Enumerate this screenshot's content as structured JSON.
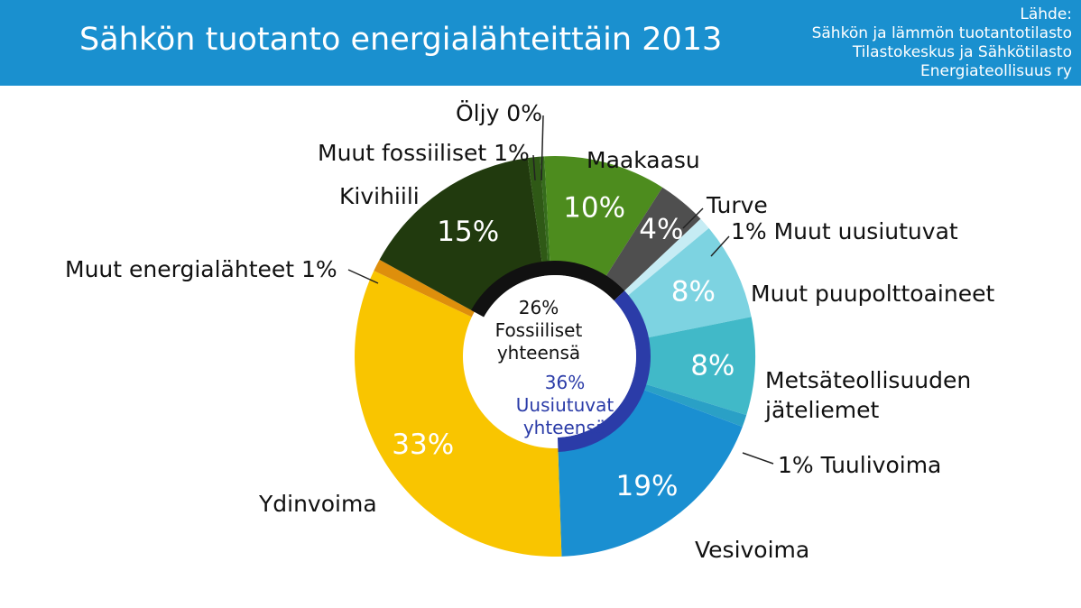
{
  "header": {
    "title": "Sähkön tuotanto energialähteittäin 2013",
    "source_lines": [
      "Lähde:",
      "Sähkön ja lämmön tuotantotilasto",
      "Tilastokeskus ja Sähkötilasto",
      "Energiateollisuus ry"
    ]
  },
  "colors": {
    "header_bg": "#1a90cf",
    "fossil_ring": "#111111",
    "renewable_ring": "#2b3ca8"
  },
  "chart_data": {
    "type": "pie",
    "title": "Sähkön tuotanto energialähteittäin 2013",
    "unit": "%",
    "slices": [
      {
        "name": "Öljy",
        "value": 0,
        "value_label": "",
        "label": "Öljy 0%",
        "color": "#356b1c"
      },
      {
        "name": "Maakaasu",
        "value": 10,
        "value_label": "10%",
        "label": "Maakaasu",
        "color": "#4d8c1e"
      },
      {
        "name": "Turve",
        "value": 4,
        "value_label": "4%",
        "label": "Turve",
        "color": "#4f4f4f"
      },
      {
        "name": "Muut uusiutuvat",
        "value": 1,
        "value_label": "",
        "label": "1% Muut uusiutuvat",
        "color": "#c6ecf4"
      },
      {
        "name": "Muut puupolttoaineet",
        "value": 8,
        "value_label": "8%",
        "label": "Muut puupolttoaineet",
        "color": "#7dd3e1"
      },
      {
        "name": "Metsäteollisuuden jäteliemet",
        "value": 8,
        "value_label": "8%",
        "label": "Metsäteollisuuden jäteliemet",
        "color": "#41b9c8"
      },
      {
        "name": "Tuulivoima",
        "value": 1,
        "value_label": "",
        "label": "1% Tuulivoima",
        "color": "#2aa0c6"
      },
      {
        "name": "Vesivoima",
        "value": 19,
        "value_label": "19%",
        "label": "Vesivoima",
        "color": "#1a8fd1"
      },
      {
        "name": "Ydinvoima",
        "value": 33,
        "value_label": "33%",
        "label": "Ydinvoima",
        "color": "#f9c500"
      },
      {
        "name": "Muut energialähteet",
        "value": 1,
        "value_label": "",
        "label": "Muut energialähteet 1%",
        "color": "#de8f0c"
      },
      {
        "name": "Kivihiili",
        "value": 15,
        "value_label": "15%",
        "label": "Kivihiili",
        "color": "#213a0e"
      },
      {
        "name": "Muut fossiiliset",
        "value": 1,
        "value_label": "",
        "label": "Muut fossiiliset 1%",
        "color": "#2f5916"
      }
    ],
    "groups": [
      {
        "name": "Fossiiliset yhteensä",
        "value": 26,
        "value_label": "26%",
        "label_lines": [
          "Fossiiliset",
          "yhteensä"
        ]
      },
      {
        "name": "Uusiutuvat yhteensä",
        "value": 36,
        "value_label": "36%",
        "label_lines": [
          "Uusiutuvat",
          "yhteensä"
        ]
      }
    ]
  }
}
